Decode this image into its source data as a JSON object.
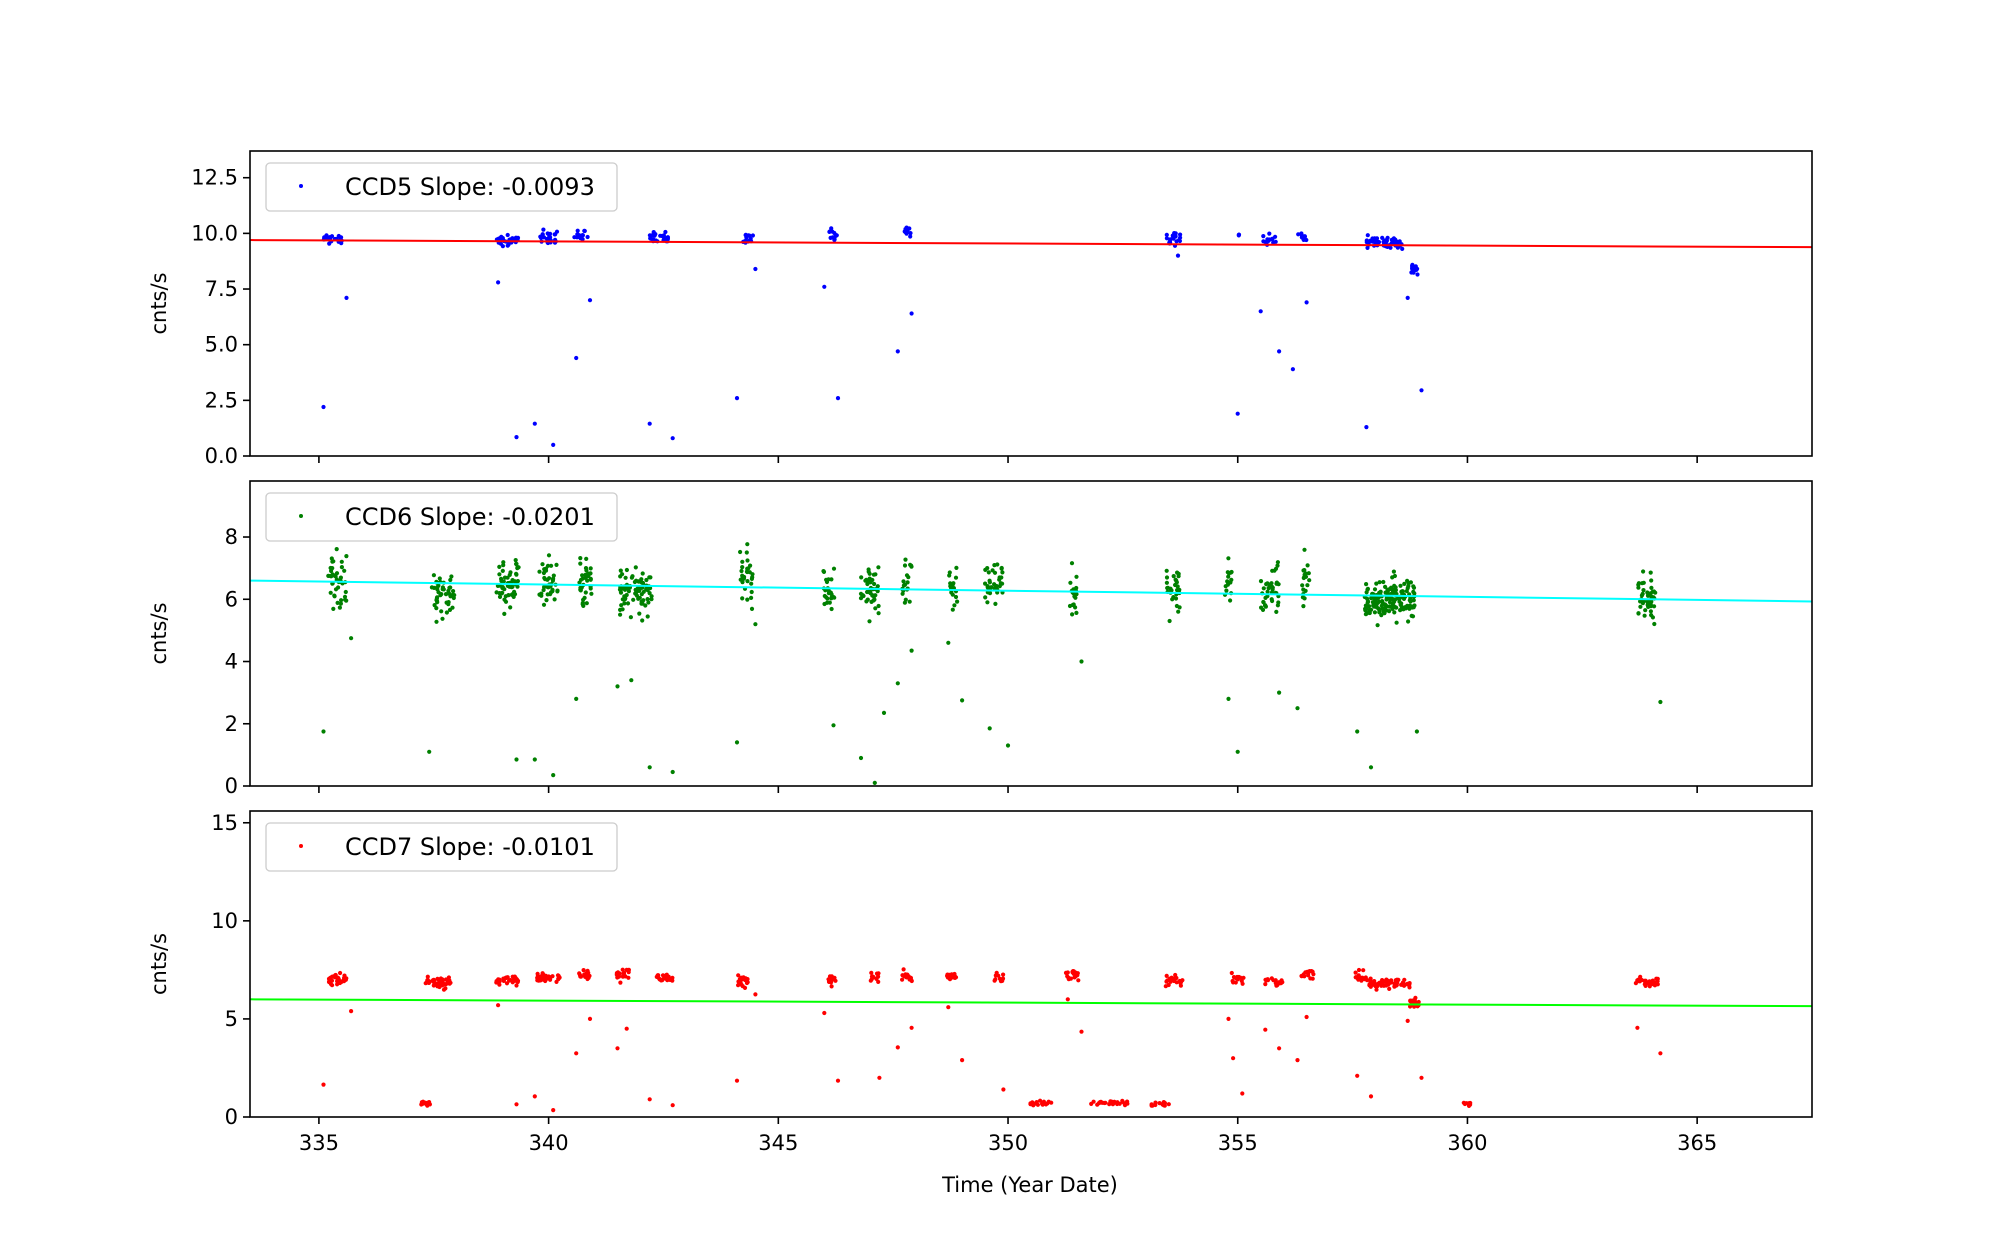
{
  "chart_data": {
    "type": "scatter",
    "xlabel": "Time (Year Date)",
    "xlim": [
      333.5,
      367.5
    ],
    "xticks": [
      335,
      340,
      345,
      350,
      355,
      360,
      365
    ],
    "panels": [
      {
        "id": "ccd5",
        "series_name": "CCD5",
        "legend_label": "CCD5 Slope: -0.0093",
        "color": "#0000ff",
        "fit_color": "#ff0000",
        "ylabel": "cnts/s",
        "ylim": [
          0,
          13.7
        ],
        "yticks": [
          "0.0",
          "2.5",
          "5.0",
          "7.5",
          "10.0",
          "12.5"
        ],
        "fit": {
          "x0": 333.5,
          "y0": 9.7,
          "x1": 367.5,
          "y1": 9.38
        },
        "clusters": [
          {
            "x": 335.3,
            "y": 9.7,
            "dx": 0.2,
            "dy": 0.2,
            "n": 25
          },
          {
            "x": 339.1,
            "y": 9.7,
            "dx": 0.25,
            "dy": 0.2,
            "n": 30
          },
          {
            "x": 340.0,
            "y": 9.8,
            "dx": 0.2,
            "dy": 0.25,
            "n": 25
          },
          {
            "x": 340.7,
            "y": 9.9,
            "dx": 0.15,
            "dy": 0.2,
            "n": 15
          },
          {
            "x": 342.4,
            "y": 9.75,
            "dx": 0.2,
            "dy": 0.2,
            "n": 25
          },
          {
            "x": 344.3,
            "y": 9.75,
            "dx": 0.15,
            "dy": 0.2,
            "n": 15
          },
          {
            "x": 346.2,
            "y": 9.95,
            "dx": 0.1,
            "dy": 0.25,
            "n": 12
          },
          {
            "x": 347.8,
            "y": 10.1,
            "dx": 0.08,
            "dy": 0.25,
            "n": 10
          },
          {
            "x": 353.6,
            "y": 9.75,
            "dx": 0.15,
            "dy": 0.2,
            "n": 20
          },
          {
            "x": 355.0,
            "y": 10.0,
            "dx": 0.03,
            "dy": 0.1,
            "n": 3
          },
          {
            "x": 355.7,
            "y": 9.75,
            "dx": 0.15,
            "dy": 0.2,
            "n": 15
          },
          {
            "x": 356.4,
            "y": 9.95,
            "dx": 0.1,
            "dy": 0.2,
            "n": 10
          },
          {
            "x": 358.2,
            "y": 9.6,
            "dx": 0.4,
            "dy": 0.2,
            "n": 60
          },
          {
            "x": 358.85,
            "y": 8.4,
            "dx": 0.07,
            "dy": 0.2,
            "n": 14
          }
        ],
        "points": [
          [
            335.1,
            2.2
          ],
          [
            335.6,
            7.1
          ],
          [
            338.9,
            7.8
          ],
          [
            339.3,
            0.85
          ],
          [
            339.7,
            1.45
          ],
          [
            340.1,
            0.5
          ],
          [
            340.6,
            4.4
          ],
          [
            340.9,
            7.0
          ],
          [
            342.2,
            1.45
          ],
          [
            342.7,
            0.8
          ],
          [
            344.1,
            2.6
          ],
          [
            344.5,
            8.4
          ],
          [
            346.0,
            7.6
          ],
          [
            346.3,
            2.6
          ],
          [
            347.6,
            4.7
          ],
          [
            347.9,
            6.4
          ],
          [
            353.7,
            9.0
          ],
          [
            355.0,
            1.9
          ],
          [
            355.5,
            6.5
          ],
          [
            355.9,
            4.7
          ],
          [
            356.2,
            3.9
          ],
          [
            356.5,
            6.9
          ],
          [
            357.8,
            1.3
          ],
          [
            358.7,
            7.1
          ],
          [
            359.0,
            2.95
          ]
        ]
      },
      {
        "id": "ccd6",
        "series_name": "CCD6",
        "legend_label": "CCD6 Slope: -0.0201",
        "color": "#008000",
        "fit_color": "#00ffff",
        "ylabel": "cnts/s",
        "ylim": [
          0,
          9.8
        ],
        "yticks": [
          "0",
          "2",
          "4",
          "6",
          "8"
        ],
        "fit": {
          "x0": 333.5,
          "y0": 6.6,
          "x1": 367.5,
          "y1": 5.93
        },
        "clusters": [
          {
            "x": 335.4,
            "y": 6.5,
            "dx": 0.2,
            "dy": 0.6,
            "n": 45
          },
          {
            "x": 337.7,
            "y": 6.3,
            "dx": 0.25,
            "dy": 0.55,
            "n": 45
          },
          {
            "x": 339.1,
            "y": 6.5,
            "dx": 0.25,
            "dy": 0.6,
            "n": 55
          },
          {
            "x": 340.0,
            "y": 6.5,
            "dx": 0.2,
            "dy": 0.55,
            "n": 40
          },
          {
            "x": 340.8,
            "y": 6.5,
            "dx": 0.15,
            "dy": 0.6,
            "n": 35
          },
          {
            "x": 341.9,
            "y": 6.3,
            "dx": 0.35,
            "dy": 0.55,
            "n": 80
          },
          {
            "x": 344.3,
            "y": 6.8,
            "dx": 0.15,
            "dy": 0.6,
            "n": 30
          },
          {
            "x": 346.1,
            "y": 6.3,
            "dx": 0.12,
            "dy": 0.55,
            "n": 25
          },
          {
            "x": 347.0,
            "y": 6.3,
            "dx": 0.2,
            "dy": 0.55,
            "n": 45
          },
          {
            "x": 347.8,
            "y": 6.5,
            "dx": 0.1,
            "dy": 0.6,
            "n": 20
          },
          {
            "x": 348.8,
            "y": 6.4,
            "dx": 0.1,
            "dy": 0.5,
            "n": 20
          },
          {
            "x": 349.7,
            "y": 6.5,
            "dx": 0.2,
            "dy": 0.5,
            "n": 35
          },
          {
            "x": 351.4,
            "y": 6.2,
            "dx": 0.1,
            "dy": 0.5,
            "n": 18
          },
          {
            "x": 353.6,
            "y": 6.3,
            "dx": 0.15,
            "dy": 0.55,
            "n": 30
          },
          {
            "x": 354.8,
            "y": 6.5,
            "dx": 0.08,
            "dy": 0.6,
            "n": 15
          },
          {
            "x": 355.7,
            "y": 6.3,
            "dx": 0.2,
            "dy": 0.55,
            "n": 40
          },
          {
            "x": 356.5,
            "y": 6.6,
            "dx": 0.1,
            "dy": 0.6,
            "n": 20
          },
          {
            "x": 358.3,
            "y": 6.0,
            "dx": 0.55,
            "dy": 0.45,
            "n": 160
          },
          {
            "x": 363.9,
            "y": 6.0,
            "dx": 0.2,
            "dy": 0.55,
            "n": 50
          }
        ],
        "points": [
          [
            335.1,
            1.75
          ],
          [
            335.7,
            4.75
          ],
          [
            337.4,
            1.1
          ],
          [
            339.3,
            0.85
          ],
          [
            339.7,
            0.85
          ],
          [
            340.1,
            0.35
          ],
          [
            340.6,
            2.8
          ],
          [
            341.5,
            3.2
          ],
          [
            341.8,
            3.4
          ],
          [
            342.2,
            0.6
          ],
          [
            342.7,
            0.45
          ],
          [
            344.1,
            1.4
          ],
          [
            344.5,
            5.2
          ],
          [
            346.2,
            1.95
          ],
          [
            346.8,
            0.9
          ],
          [
            347.1,
            0.1
          ],
          [
            347.3,
            2.35
          ],
          [
            347.6,
            3.3
          ],
          [
            347.9,
            4.35
          ],
          [
            348.7,
            4.6
          ],
          [
            349.0,
            2.75
          ],
          [
            349.6,
            1.85
          ],
          [
            350.0,
            1.3
          ],
          [
            351.6,
            4.0
          ],
          [
            354.8,
            2.8
          ],
          [
            355.0,
            1.1
          ],
          [
            355.9,
            3.0
          ],
          [
            356.3,
            2.5
          ],
          [
            357.6,
            1.75
          ],
          [
            357.9,
            0.6
          ],
          [
            358.9,
            1.75
          ],
          [
            364.2,
            2.7
          ]
        ]
      },
      {
        "id": "ccd7",
        "series_name": "CCD7",
        "legend_label": "CCD7 Slope: -0.0101",
        "color": "#ff0000",
        "fit_color": "#00ff00",
        "ylabel": "cnts/s",
        "ylim": [
          0,
          15.6
        ],
        "yticks": [
          "0",
          "5",
          "10",
          "15"
        ],
        "fit": {
          "x0": 333.5,
          "y0": 6.0,
          "x1": 367.5,
          "y1": 5.65
        },
        "clusters": [
          {
            "x": 335.4,
            "y": 7.05,
            "dx": 0.2,
            "dy": 0.2,
            "n": 30
          },
          {
            "x": 337.6,
            "y": 6.85,
            "dx": 0.3,
            "dy": 0.2,
            "n": 45
          },
          {
            "x": 339.1,
            "y": 7.0,
            "dx": 0.25,
            "dy": 0.15,
            "n": 35
          },
          {
            "x": 340.0,
            "y": 7.1,
            "dx": 0.25,
            "dy": 0.15,
            "n": 30
          },
          {
            "x": 340.8,
            "y": 7.2,
            "dx": 0.15,
            "dy": 0.15,
            "n": 20
          },
          {
            "x": 341.6,
            "y": 7.25,
            "dx": 0.15,
            "dy": 0.2,
            "n": 20
          },
          {
            "x": 342.5,
            "y": 7.1,
            "dx": 0.2,
            "dy": 0.15,
            "n": 25
          },
          {
            "x": 344.2,
            "y": 6.95,
            "dx": 0.15,
            "dy": 0.2,
            "n": 20
          },
          {
            "x": 346.2,
            "y": 7.05,
            "dx": 0.12,
            "dy": 0.2,
            "n": 15
          },
          {
            "x": 347.1,
            "y": 7.15,
            "dx": 0.1,
            "dy": 0.2,
            "n": 12
          },
          {
            "x": 347.8,
            "y": 7.2,
            "dx": 0.12,
            "dy": 0.2,
            "n": 15
          },
          {
            "x": 348.8,
            "y": 7.15,
            "dx": 0.15,
            "dy": 0.15,
            "n": 15
          },
          {
            "x": 349.8,
            "y": 7.1,
            "dx": 0.1,
            "dy": 0.2,
            "n": 10
          },
          {
            "x": 351.4,
            "y": 7.25,
            "dx": 0.15,
            "dy": 0.2,
            "n": 20
          },
          {
            "x": 353.6,
            "y": 7.0,
            "dx": 0.2,
            "dy": 0.2,
            "n": 20
          },
          {
            "x": 355.0,
            "y": 7.1,
            "dx": 0.15,
            "dy": 0.2,
            "n": 15
          },
          {
            "x": 355.8,
            "y": 6.9,
            "dx": 0.2,
            "dy": 0.15,
            "n": 20
          },
          {
            "x": 356.5,
            "y": 7.2,
            "dx": 0.15,
            "dy": 0.2,
            "n": 15
          },
          {
            "x": 357.7,
            "y": 7.1,
            "dx": 0.15,
            "dy": 0.2,
            "n": 15
          },
          {
            "x": 358.3,
            "y": 6.8,
            "dx": 0.45,
            "dy": 0.15,
            "n": 70
          },
          {
            "x": 358.85,
            "y": 5.8,
            "dx": 0.1,
            "dy": 0.2,
            "n": 20
          },
          {
            "x": 363.9,
            "y": 6.85,
            "dx": 0.25,
            "dy": 0.15,
            "n": 35
          },
          {
            "x": 337.3,
            "y": 0.7,
            "dx": 0.12,
            "dy": 0.08,
            "n": 12
          },
          {
            "x": 350.7,
            "y": 0.7,
            "dx": 0.25,
            "dy": 0.08,
            "n": 20
          },
          {
            "x": 352.2,
            "y": 0.7,
            "dx": 0.4,
            "dy": 0.08,
            "n": 30
          },
          {
            "x": 353.3,
            "y": 0.65,
            "dx": 0.2,
            "dy": 0.08,
            "n": 15
          },
          {
            "x": 360.0,
            "y": 0.65,
            "dx": 0.08,
            "dy": 0.08,
            "n": 8
          }
        ],
        "points": [
          [
            335.1,
            1.65
          ],
          [
            335.7,
            5.4
          ],
          [
            338.9,
            5.7
          ],
          [
            339.3,
            0.65
          ],
          [
            339.7,
            1.05
          ],
          [
            340.1,
            0.35
          ],
          [
            340.6,
            3.25
          ],
          [
            340.9,
            5.0
          ],
          [
            341.5,
            3.5
          ],
          [
            341.7,
            4.5
          ],
          [
            342.2,
            0.9
          ],
          [
            342.7,
            0.6
          ],
          [
            344.1,
            1.85
          ],
          [
            344.5,
            6.25
          ],
          [
            346.0,
            5.3
          ],
          [
            346.3,
            1.85
          ],
          [
            347.2,
            2.0
          ],
          [
            347.6,
            3.55
          ],
          [
            347.9,
            4.55
          ],
          [
            348.7,
            5.6
          ],
          [
            349.0,
            2.9
          ],
          [
            349.9,
            1.4
          ],
          [
            351.3,
            6.0
          ],
          [
            351.6,
            4.35
          ],
          [
            354.8,
            5.0
          ],
          [
            354.9,
            3.0
          ],
          [
            355.1,
            1.2
          ],
          [
            355.6,
            4.45
          ],
          [
            355.9,
            3.5
          ],
          [
            356.3,
            2.9
          ],
          [
            356.5,
            5.1
          ],
          [
            357.6,
            2.1
          ],
          [
            357.9,
            1.05
          ],
          [
            358.7,
            4.9
          ],
          [
            359.0,
            2.0
          ],
          [
            363.7,
            4.55
          ],
          [
            364.2,
            3.25
          ]
        ]
      }
    ]
  }
}
